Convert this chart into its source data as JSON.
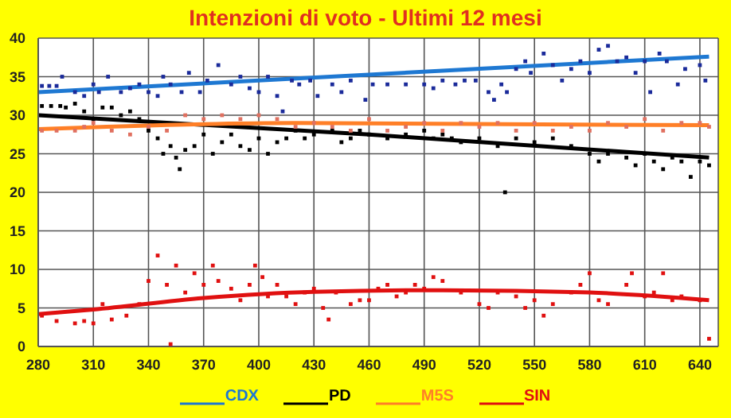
{
  "chart_data": {
    "type": "scatter",
    "title": "Intenzioni di voto - Ultimi 12 mesi",
    "xlim": [
      280,
      650
    ],
    "xticks": [
      280,
      310,
      340,
      370,
      400,
      430,
      460,
      490,
      520,
      550,
      580,
      610,
      640
    ],
    "ylim": [
      0,
      40
    ],
    "yticks": [
      0,
      5,
      10,
      15,
      20,
      25,
      30,
      35,
      40
    ],
    "grid": true,
    "legend": "bottom",
    "series": [
      {
        "marker": "square",
        "color": "#1a2a9a",
        "x": [
          282,
          286,
          290,
          293,
          300,
          305,
          310,
          313,
          318,
          325,
          330,
          335,
          340,
          345,
          348,
          352,
          358,
          362,
          368,
          372,
          378,
          385,
          390,
          395,
          400,
          405,
          410,
          413,
          418,
          422,
          428,
          432,
          440,
          445,
          450,
          458,
          462,
          470,
          480,
          490,
          495,
          500,
          507,
          512,
          518,
          525,
          528,
          532,
          535,
          540,
          545,
          548,
          555,
          560,
          565,
          570,
          575,
          580,
          585,
          590,
          595,
          600,
          605,
          610,
          613,
          618,
          622,
          628,
          632,
          640,
          643
        ],
        "values": [
          33.8,
          33.8,
          33.8,
          35,
          33,
          32.5,
          34,
          33,
          35,
          33,
          33.5,
          34,
          33,
          32.5,
          35,
          34,
          33,
          35.5,
          33,
          34.5,
          36.5,
          34,
          35,
          33.5,
          33,
          35,
          32.5,
          30.5,
          34.5,
          34,
          34.5,
          32.5,
          34,
          33,
          34.5,
          32,
          34,
          34,
          34,
          34,
          33.5,
          34.5,
          34,
          34.5,
          34.5,
          33,
          32,
          34,
          33,
          36,
          37,
          35.5,
          38,
          36.5,
          34.5,
          36,
          37,
          35.5,
          38.5,
          39,
          37,
          37.5,
          35.5,
          37,
          33,
          38,
          37,
          34,
          36,
          36.5,
          34.5
        ]
      },
      {
        "marker": "square",
        "color": "#000000",
        "x": [
          282,
          287,
          292,
          295,
          300,
          305,
          310,
          315,
          320,
          325,
          330,
          335,
          340,
          345,
          348,
          352,
          355,
          357,
          360,
          365,
          370,
          375,
          380,
          385,
          390,
          395,
          400,
          405,
          410,
          415,
          420,
          425,
          430,
          440,
          445,
          450,
          455,
          460,
          470,
          480,
          490,
          495,
          500,
          505,
          510,
          520,
          530,
          534,
          540,
          550,
          560,
          570,
          580,
          585,
          590,
          600,
          605,
          610,
          615,
          620,
          625,
          630,
          635,
          640,
          645
        ],
        "values": [
          31.2,
          31.2,
          31.2,
          31,
          31.5,
          30.5,
          29.5,
          31,
          31,
          30,
          30.5,
          29.5,
          28,
          27,
          25,
          26,
          24.5,
          23,
          25.5,
          26,
          27.5,
          25,
          26.5,
          27.5,
          26,
          25.5,
          27,
          25,
          26.5,
          27,
          28,
          27,
          27.5,
          28,
          26.5,
          27,
          28,
          27.5,
          27,
          27.5,
          28,
          27,
          27.5,
          27,
          26.5,
          27,
          26,
          20,
          27,
          26.5,
          27,
          26,
          25,
          24,
          25,
          24.5,
          23.5,
          25,
          24,
          23,
          24.5,
          24,
          22,
          24,
          23.5
        ]
      },
      {
        "marker": "square",
        "color": "#e07060",
        "x": [
          282,
          290,
          300,
          305,
          310,
          320,
          330,
          340,
          350,
          360,
          370,
          380,
          390,
          400,
          410,
          420,
          430,
          440,
          450,
          460,
          470,
          480,
          490,
          500,
          510,
          520,
          530,
          540,
          550,
          560,
          570,
          580,
          590,
          600,
          610,
          620,
          630,
          640,
          645
        ],
        "values": [
          28,
          28,
          28,
          28.5,
          29,
          28,
          27.5,
          28.5,
          28,
          30,
          29.5,
          30,
          29.5,
          30,
          29.5,
          28.5,
          29,
          28.5,
          28,
          29.5,
          28,
          28.5,
          29,
          28,
          29,
          28.5,
          29,
          28,
          29,
          28,
          28.5,
          28,
          29,
          28.5,
          29.5,
          28,
          29,
          29,
          28.5
        ]
      },
      {
        "marker": "square",
        "color": "#e01010",
        "x": [
          282,
          290,
          300,
          305,
          310,
          315,
          320,
          328,
          335,
          340,
          345,
          350,
          352,
          355,
          360,
          365,
          370,
          375,
          378,
          385,
          390,
          395,
          398,
          402,
          405,
          410,
          415,
          420,
          425,
          430,
          435,
          438,
          442,
          450,
          455,
          460,
          465,
          470,
          475,
          480,
          485,
          490,
          495,
          500,
          510,
          520,
          525,
          530,
          540,
          545,
          550,
          555,
          560,
          570,
          575,
          580,
          585,
          590,
          600,
          603,
          610,
          615,
          620,
          625,
          630,
          640,
          645
        ],
        "values": [
          4,
          3.3,
          3,
          3.3,
          3,
          5.5,
          3.5,
          4,
          5.5,
          8.5,
          11.8,
          8,
          0.3,
          10.5,
          7,
          9.5,
          8,
          10.5,
          8.5,
          7.5,
          6,
          8,
          10.5,
          9,
          6.5,
          8,
          6.5,
          5.5,
          7,
          7.5,
          5,
          3.5,
          7,
          5.5,
          6,
          6,
          7.5,
          8,
          6.5,
          7,
          8,
          7.5,
          9,
          8.5,
          7,
          5.5,
          5,
          7,
          6.5,
          5,
          6,
          4,
          5.5,
          7,
          8,
          9.5,
          6,
          5.5,
          8,
          9.5,
          6.5,
          7,
          9.5,
          6,
          6.5,
          6,
          1
        ]
      },
      {
        "type": "line",
        "name": "CDX",
        "color": "#1e78d2",
        "x": [
          280,
          645
        ],
        "values": [
          33,
          37.6
        ]
      },
      {
        "type": "line",
        "name": "PD",
        "color": "#000000",
        "x": [
          280,
          460,
          645
        ],
        "values": [
          30,
          27.5,
          24.5
        ]
      },
      {
        "type": "line",
        "name": "M5S",
        "color": "#ff7f27",
        "x": [
          280,
          420,
          645
        ],
        "values": [
          28.2,
          29,
          28.7
        ]
      },
      {
        "type": "line",
        "name": "SIN",
        "color": "#e01010",
        "x": [
          280,
          310,
          370,
          430,
          500,
          580,
          645
        ],
        "values": [
          4.2,
          4.8,
          6.3,
          7.1,
          7.3,
          7,
          6
        ]
      }
    ]
  }
}
